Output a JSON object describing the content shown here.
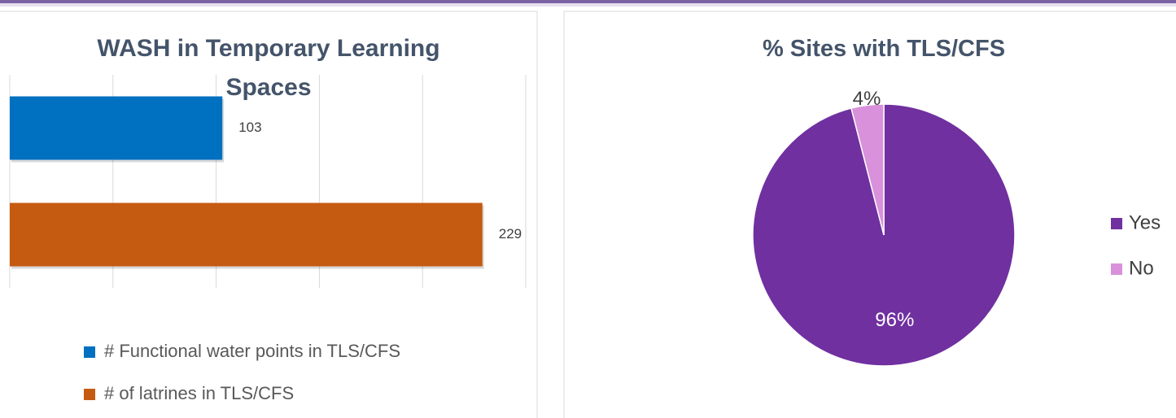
{
  "chart_data": [
    {
      "type": "hbar",
      "title": "WASH in Temporary Learning Spaces",
      "series": [
        {
          "name": "# Functional water points in TLS/CFS",
          "color": "#0070c0",
          "values": [
            103
          ]
        },
        {
          "name": "# of latrines in TLS/CFS",
          "color": "#c55a11",
          "values": [
            229
          ]
        }
      ],
      "xlim": [
        0,
        250
      ],
      "xticks": [
        0,
        50,
        100,
        150,
        200,
        250
      ],
      "grid": true,
      "legend": "bottom"
    },
    {
      "type": "pie",
      "title": "% Sites with TLS/CFS",
      "categories": [
        "Yes",
        "No"
      ],
      "values": [
        96,
        4
      ],
      "value_labels": [
        "96%",
        "4%"
      ],
      "colors": [
        "#7030a0",
        "#d891da"
      ],
      "legend": "right"
    }
  ]
}
